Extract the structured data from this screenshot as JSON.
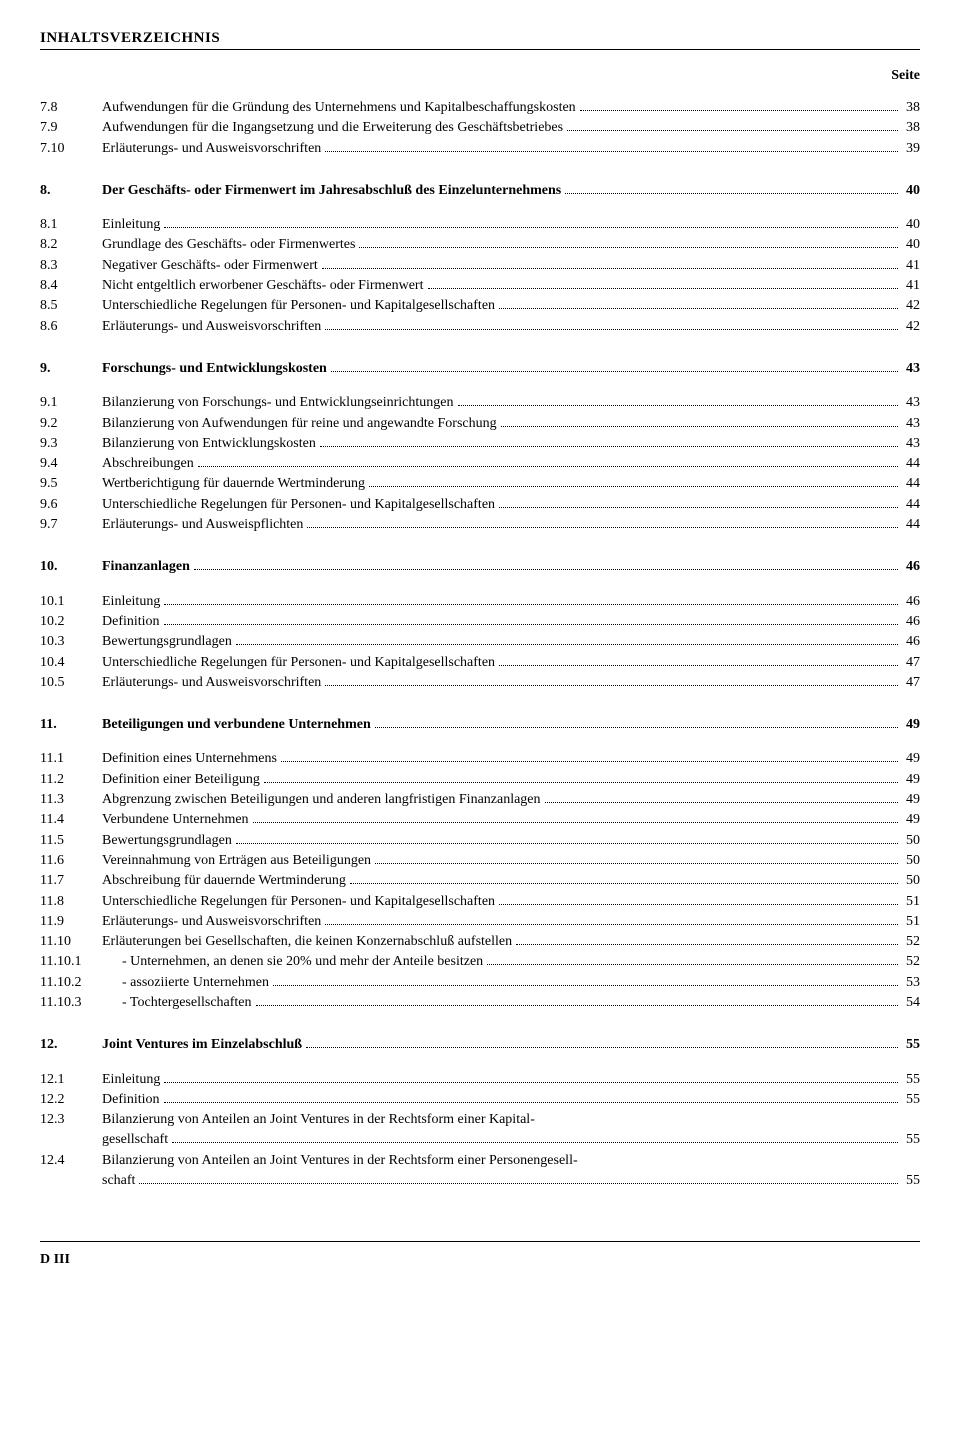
{
  "header": "INHALTSVERZEICHNIS",
  "pageLabel": "Seite",
  "footer": "D III",
  "sections": [
    {
      "entries": [
        {
          "num": "7.8",
          "label": "Aufwendungen für die Gründung des Unternehmens und Kapitalbeschaffungskosten",
          "page": "38"
        },
        {
          "num": "7.9",
          "label": "Aufwendungen für die Ingangsetzung und die Erweiterung des Geschäftsbetriebes",
          "page": "38"
        },
        {
          "num": "7.10",
          "label": "Erläuterungs- und Ausweisvorschriften",
          "page": "39"
        }
      ]
    },
    {
      "entries": [
        {
          "num": "8.",
          "label": "Der Geschäfts- oder Firmenwert im Jahresabschluß des Einzelunternehmens",
          "page": "40",
          "bold": true,
          "spaceAfter": true
        },
        {
          "num": "8.1",
          "label": "Einleitung",
          "page": "40"
        },
        {
          "num": "8.2",
          "label": "Grundlage des Geschäfts- oder Firmenwertes",
          "page": "40"
        },
        {
          "num": "8.3",
          "label": "Negativer Geschäfts- oder Firmenwert",
          "page": "41"
        },
        {
          "num": "8.4",
          "label": "Nicht entgeltlich erworbener Geschäfts- oder Firmenwert",
          "page": "41"
        },
        {
          "num": "8.5",
          "label": "Unterschiedliche Regelungen für Personen- und Kapitalgesellschaften",
          "page": "42"
        },
        {
          "num": "8.6",
          "label": "Erläuterungs- und Ausweisvorschriften",
          "page": "42"
        }
      ]
    },
    {
      "entries": [
        {
          "num": "9.",
          "label": "Forschungs- und Entwicklungskosten",
          "page": "43",
          "bold": true,
          "spaceAfter": true
        },
        {
          "num": "9.1",
          "label": "Bilanzierung von Forschungs- und Entwicklungseinrichtungen",
          "page": "43"
        },
        {
          "num": "9.2",
          "label": "Bilanzierung von Aufwendungen für reine und angewandte Forschung",
          "page": "43"
        },
        {
          "num": "9.3",
          "label": "Bilanzierung von Entwicklungskosten",
          "page": "43"
        },
        {
          "num": "9.4",
          "label": "Abschreibungen",
          "page": "44"
        },
        {
          "num": "9.5",
          "label": "Wertberichtigung für dauernde Wertminderung",
          "page": "44"
        },
        {
          "num": "9.6",
          "label": "Unterschiedliche Regelungen für Personen- und Kapitalgesellschaften",
          "page": "44"
        },
        {
          "num": "9.7",
          "label": "Erläuterungs- und Ausweispflichten",
          "page": "44"
        }
      ]
    },
    {
      "entries": [
        {
          "num": "10.",
          "label": "Finanzanlagen",
          "page": "46",
          "bold": true,
          "spaceAfter": true
        },
        {
          "num": "10.1",
          "label": "Einleitung",
          "page": "46"
        },
        {
          "num": "10.2",
          "label": "Definition",
          "page": "46"
        },
        {
          "num": "10.3",
          "label": "Bewertungsgrundlagen",
          "page": "46"
        },
        {
          "num": "10.4",
          "label": "Unterschiedliche Regelungen für Personen- und Kapitalgesellschaften",
          "page": "47"
        },
        {
          "num": "10.5",
          "label": "Erläuterungs- und Ausweisvorschriften",
          "page": "47"
        }
      ]
    },
    {
      "entries": [
        {
          "num": "11.",
          "label": "Beteiligungen und verbundene Unternehmen",
          "page": "49",
          "bold": true,
          "spaceAfter": true
        },
        {
          "num": "11.1",
          "label": "Definition eines Unternehmens",
          "page": "49"
        },
        {
          "num": "11.2",
          "label": "Definition einer Beteiligung",
          "page": "49"
        },
        {
          "num": "11.3",
          "label": "Abgrenzung zwischen Beteiligungen und anderen langfristigen Finanzanlagen",
          "page": "49"
        },
        {
          "num": "11.4",
          "label": "Verbundene Unternehmen",
          "page": "49"
        },
        {
          "num": "11.5",
          "label": "Bewertungsgrundlagen",
          "page": "50"
        },
        {
          "num": "11.6",
          "label": "Vereinnahmung von Erträgen aus Beteiligungen",
          "page": "50"
        },
        {
          "num": "11.7",
          "label": "Abschreibung für dauernde Wertminderung",
          "page": "50"
        },
        {
          "num": "11.8",
          "label": "Unterschiedliche Regelungen für Personen- und Kapitalgesellschaften",
          "page": "51"
        },
        {
          "num": "11.9",
          "label": "Erläuterungs- und Ausweisvorschriften",
          "page": "51"
        },
        {
          "num": "11.10",
          "label": "Erläuterungen bei Gesellschaften, die keinen Konzernabschluß aufstellen",
          "page": "52"
        },
        {
          "num": "11.10.1",
          "label": "- Unternehmen, an denen sie 20% und mehr der Anteile besitzen",
          "page": "52",
          "indent": true
        },
        {
          "num": "11.10.2",
          "label": "- assoziierte Unternehmen",
          "page": "53",
          "indent": true
        },
        {
          "num": "11.10.3",
          "label": "- Tochtergesellschaften",
          "page": "54",
          "indent": true
        }
      ]
    },
    {
      "entries": [
        {
          "num": "12.",
          "label": "Joint Ventures im Einzelabschluß",
          "page": "55",
          "bold": true,
          "spaceAfter": true
        },
        {
          "num": "12.1",
          "label": "Einleitung",
          "page": "55"
        },
        {
          "num": "12.2",
          "label": "Definition",
          "page": "55"
        },
        {
          "num": "12.3",
          "labelLines": [
            "Bilanzierung von Anteilen an Joint Ventures in der Rechtsform einer Kapital-",
            "gesellschaft"
          ],
          "page": "55"
        },
        {
          "num": "12.4",
          "labelLines": [
            "Bilanzierung von Anteilen an Joint Ventures in der Rechtsform einer Personengesell-",
            "schaft"
          ],
          "page": "55"
        }
      ]
    }
  ]
}
